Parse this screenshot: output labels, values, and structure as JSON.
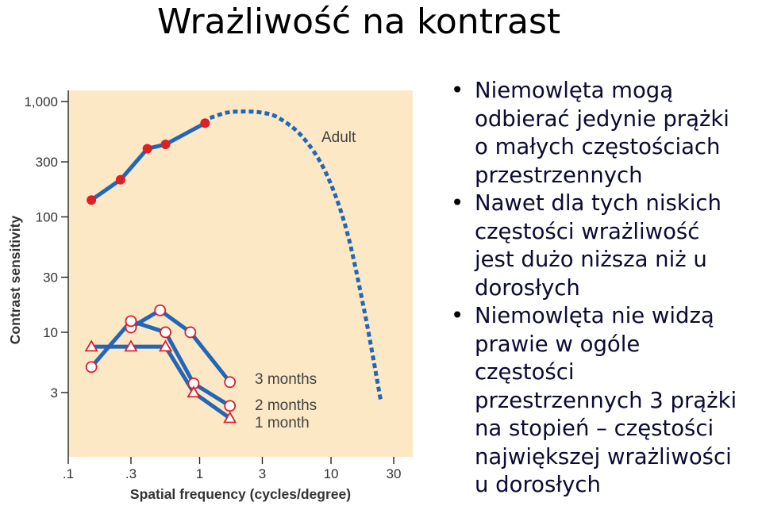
{
  "slide": {
    "title": "Wrażliwość na kontrast",
    "bullets": [
      [
        "Niemowlęta mogą",
        "odbierać jedynie prążki",
        "o małych częstościach",
        "przestrzennych"
      ],
      [
        "Nawet dla tych niskich",
        "częstości wrażliwość",
        "jest dużo niższa niż u",
        "dorosłych"
      ],
      [
        "Niemowlęta nie widzą",
        "prawie w ogóle",
        "częstości",
        "przestrzennych 3 prążki",
        "na stopień – częstości",
        "największej wrażliwości",
        "u dorosłych"
      ]
    ]
  },
  "chart_data": {
    "type": "line",
    "xlabel": "Spatial frequency (cycles/degree)",
    "ylabel": "Contrast sensitivity",
    "x_scale": "log",
    "y_scale": "log",
    "xlim": [
      0.1,
      30
    ],
    "ylim": [
      1,
      1000
    ],
    "x_ticks": [
      {
        "value": 0.1,
        "label": ".1"
      },
      {
        "value": 0.3,
        "label": ".3"
      },
      {
        "value": 1,
        "label": "1"
      },
      {
        "value": 3,
        "label": "3"
      },
      {
        "value": 10,
        "label": "10"
      },
      {
        "value": 30,
        "label": "30"
      }
    ],
    "y_ticks": [
      {
        "value": 1000,
        "label": "1,000"
      },
      {
        "value": 300,
        "label": "300"
      },
      {
        "value": 100,
        "label": "100"
      },
      {
        "value": 30,
        "label": "30"
      },
      {
        "value": 10,
        "label": "10"
      },
      {
        "value": 3,
        "label": "3"
      }
    ],
    "grid": false,
    "background": "#fce8c4",
    "line_color": "#2266b8",
    "series": [
      {
        "name": "Adult",
        "marker": "filled-circle",
        "marker_color": "#dd1f26",
        "x": [
          0.15,
          0.25,
          0.4,
          0.55,
          1.1
        ],
        "y": [
          140,
          210,
          390,
          425,
          650
        ]
      },
      {
        "name": "Adult",
        "marker": "none",
        "dashed": true,
        "x": [
          1.2,
          1.6,
          2.2,
          3.0,
          4.0,
          6.0,
          9.0,
          13.0,
          18.0,
          24.0
        ],
        "y": [
          720,
          800,
          820,
          800,
          720,
          500,
          250,
          80,
          15,
          2.5
        ]
      },
      {
        "name": "3 months",
        "marker": "open-circle",
        "marker_color": "#dd1f26",
        "x": [
          0.3,
          0.5,
          0.85,
          1.7
        ],
        "y": [
          11,
          15.5,
          10,
          3.7
        ]
      },
      {
        "name": "2 months",
        "marker": "open-circle",
        "marker_color": "#dd1f26",
        "x": [
          0.15,
          0.3,
          0.55,
          0.9,
          1.7
        ],
        "y": [
          5,
          12.5,
          10,
          3.6,
          2.3
        ]
      },
      {
        "name": "1 month",
        "marker": "open-triangle",
        "marker_color": "#dd1f26",
        "x": [
          0.15,
          0.3,
          0.55,
          0.9,
          1.7
        ],
        "y": [
          7.5,
          7.5,
          7.5,
          3.0,
          1.8
        ]
      }
    ],
    "labels": {
      "adult": "Adult",
      "m3": "3 months",
      "m2": "2 months",
      "m1": "1 month"
    }
  }
}
